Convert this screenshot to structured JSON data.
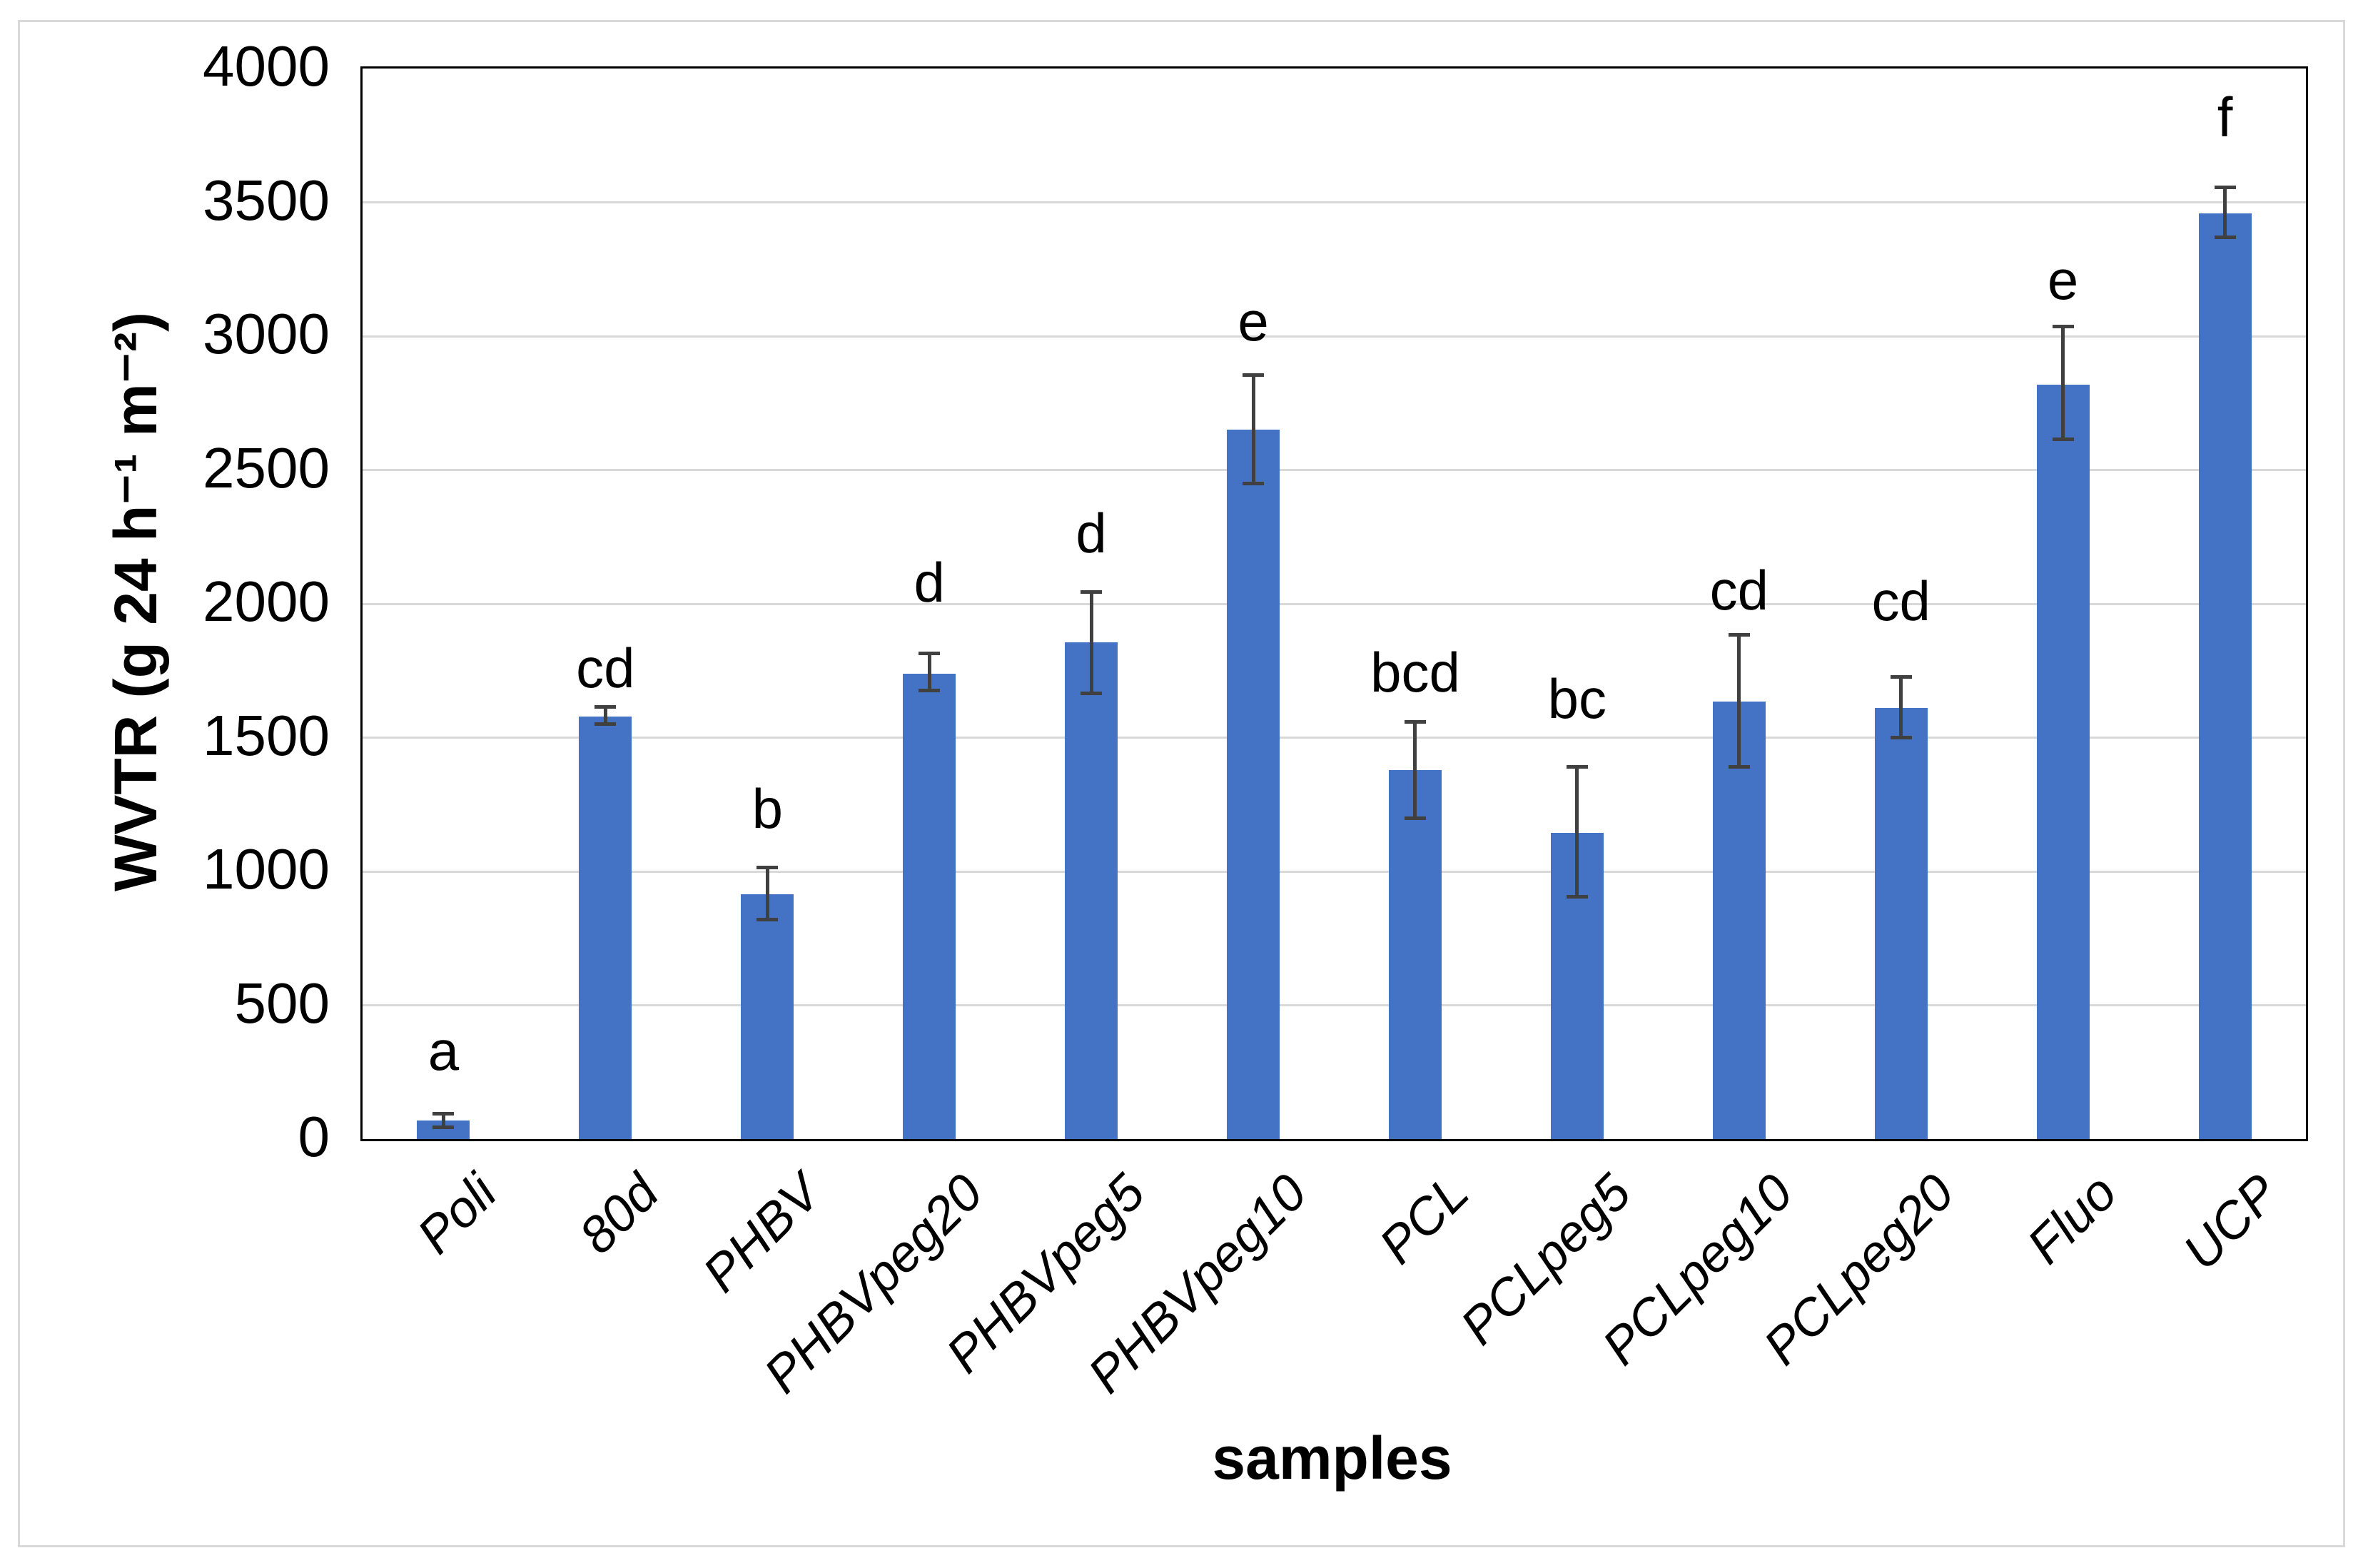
{
  "frame": {
    "background_color": "#ffffff",
    "border_color": "#d9d9d9"
  },
  "chart_data": {
    "type": "bar",
    "title": "",
    "xlabel": "samples",
    "ylabel": "WVTR (g 24 h⁻¹ m⁻²)",
    "ylim": [
      0,
      4000
    ],
    "ytick_step": 500,
    "yticks": [
      0,
      500,
      1000,
      1500,
      2000,
      2500,
      3000,
      3500,
      4000
    ],
    "grid": true,
    "legend": "none",
    "bar_color": "#4472c4",
    "error_bar_color": "#404040",
    "grid_color": "#d9d9d9",
    "axis_color": "#000000",
    "categories": [
      "Poli",
      "80d",
      "PHBV",
      "PHBVpeg20",
      "PHBVpeg5",
      "PHBVpeg10",
      "PCL",
      "PCLpeg5",
      "PCLpeg10",
      "PCLpeg20",
      "Fluo",
      "UCP"
    ],
    "values": [
      70,
      1580,
      915,
      1740,
      1855,
      2650,
      1380,
      1145,
      1635,
      1610,
      2820,
      3460
    ],
    "error_top": [
      95,
      1615,
      1015,
      1815,
      2045,
      2855,
      1560,
      1390,
      1885,
      1728,
      3035,
      3555
    ],
    "error_bottom": [
      45,
      1550,
      820,
      1675,
      1665,
      2450,
      1200,
      905,
      1390,
      1500,
      2615,
      3370
    ],
    "letters": [
      "a",
      "cd",
      "b",
      "d",
      "d",
      "e",
      "bcd",
      "bc",
      "cd",
      "cd",
      "e",
      "f"
    ],
    "letter_y": [
      330,
      1760,
      1235,
      2080,
      2265,
      3055,
      1745,
      1645,
      2050,
      2010,
      3210,
      3820
    ]
  }
}
